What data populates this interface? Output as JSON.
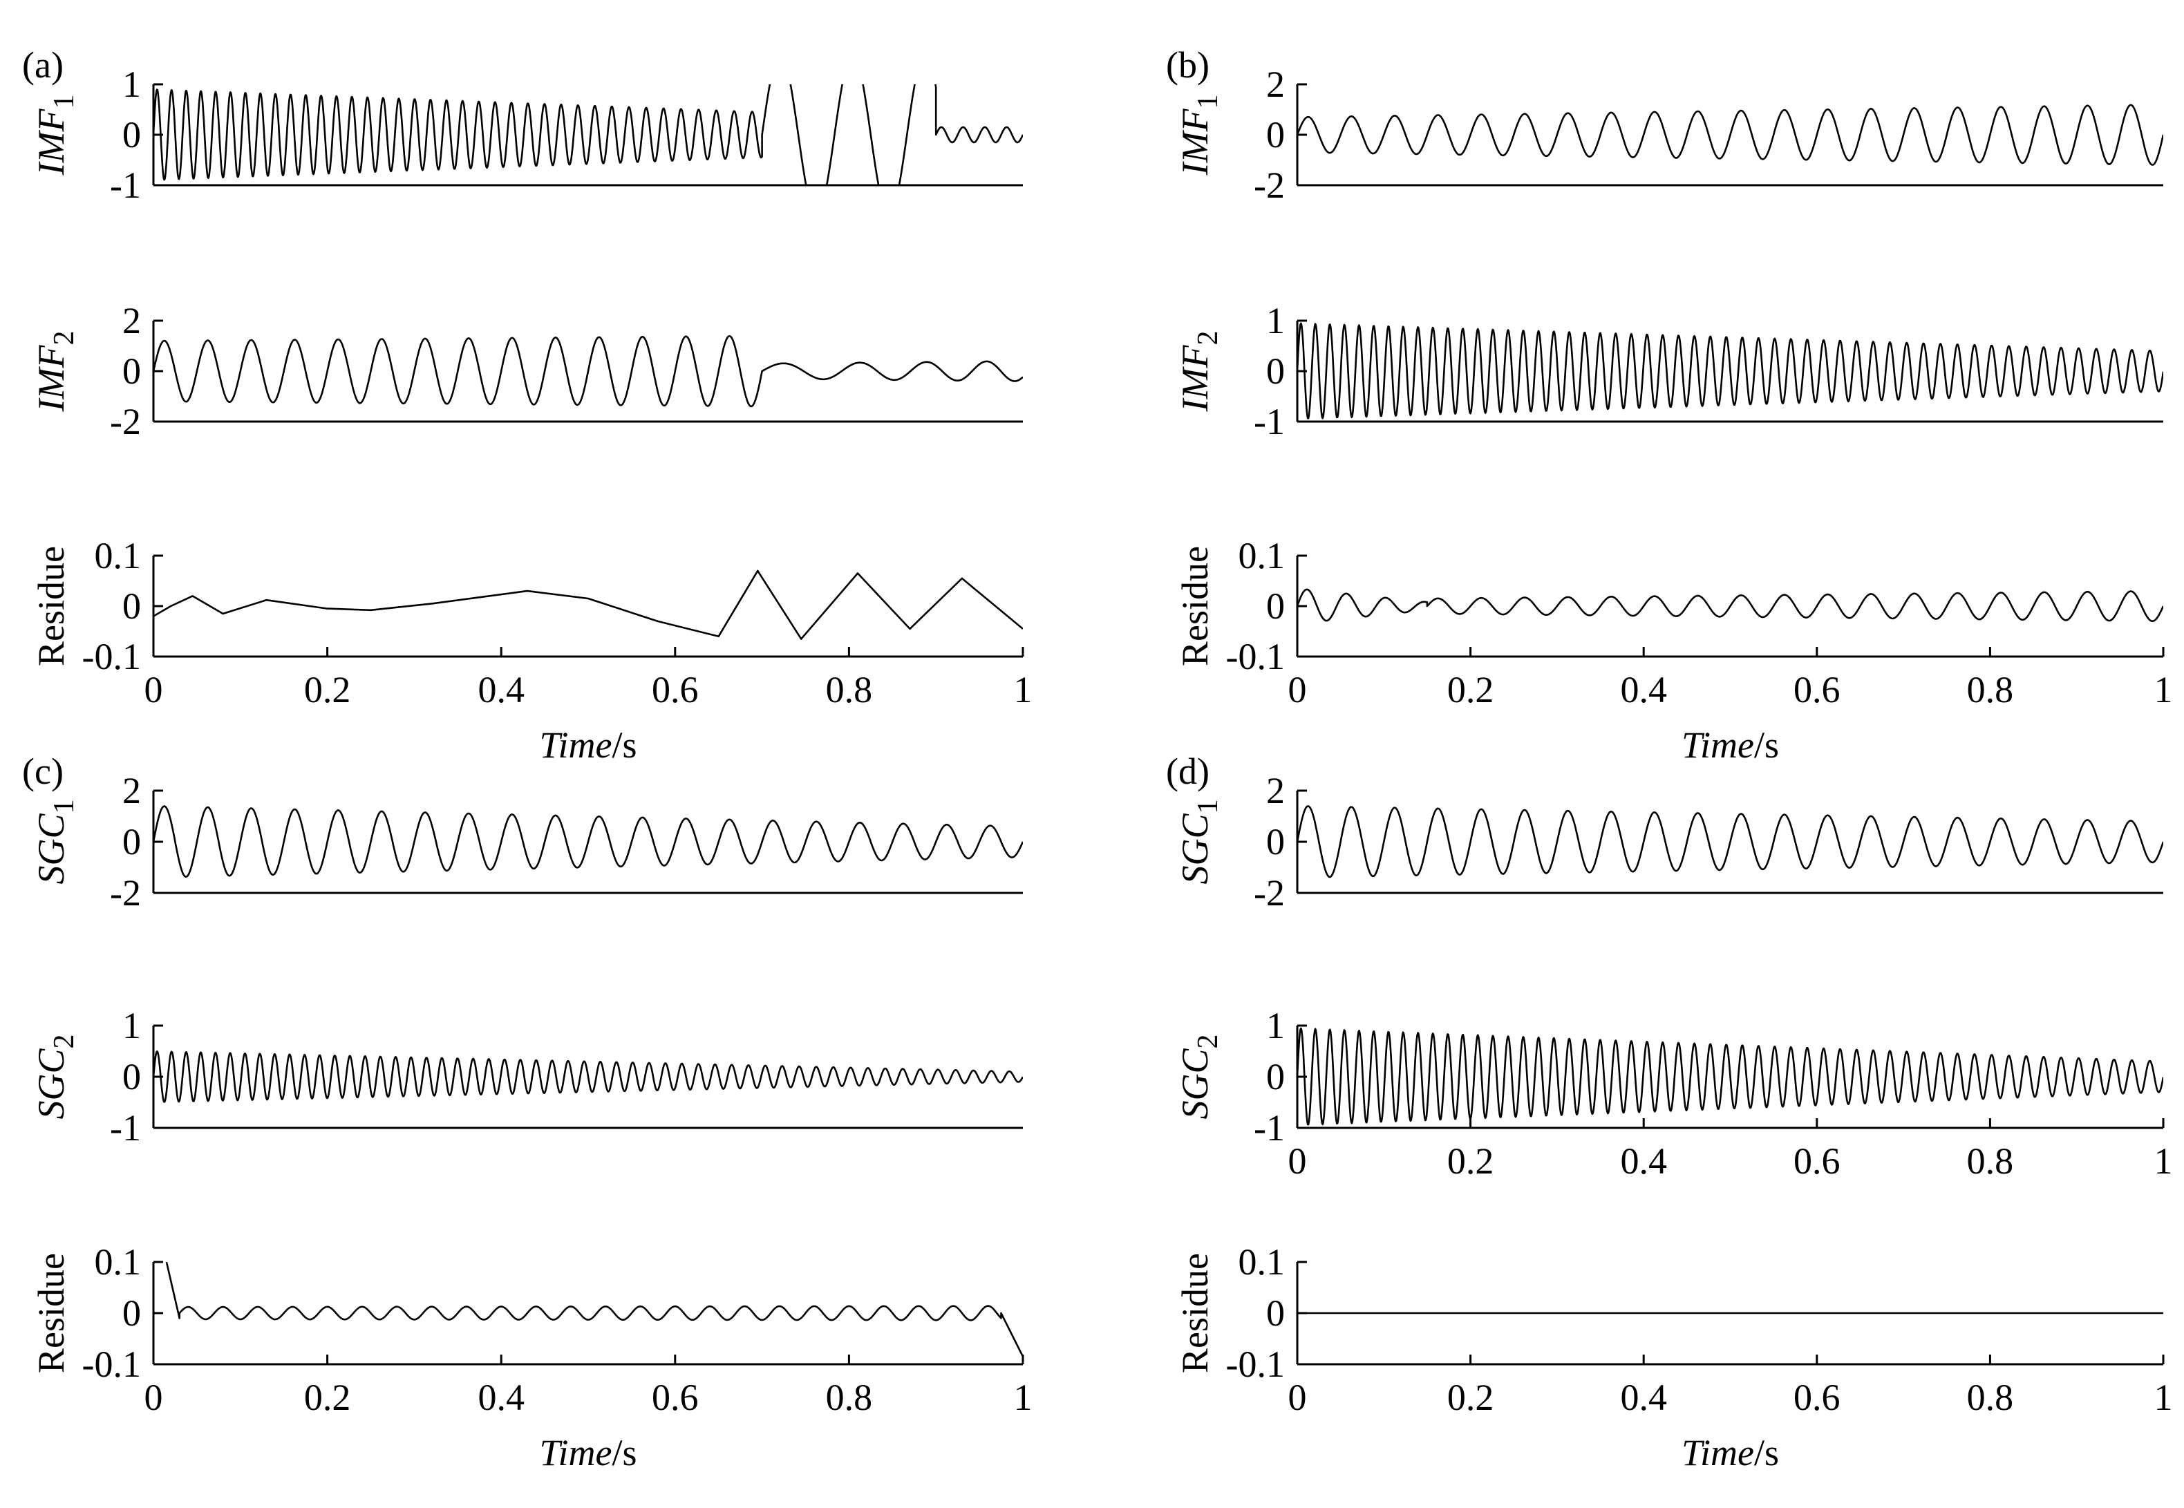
{
  "figure_title": "",
  "chart_data": [
    {
      "type": "line",
      "panel": "a",
      "panel_label": "(a)",
      "ylabel_main": "IMF",
      "ylabel_sub": "1",
      "ylabel_italic": true,
      "ylim": [
        -1,
        1
      ],
      "yticks": [
        "1",
        "0",
        "-1"
      ],
      "ytick_values": [
        1,
        0,
        -1
      ],
      "xlim": [
        0,
        1
      ],
      "x_axis_shown": false,
      "signal": {
        "model": "chirp_plus_burst",
        "description": "oscillation ~0.9 amplitude decaying to ~0.5, clipped burst 0.72-0.87, small ripple after 0.9"
      },
      "series": [
        {
          "name": "IMF1",
          "segments": [
            {
              "x0": 0.0,
              "x1": 0.7,
              "f0": 60,
              "f1": 48,
              "a0": 0.9,
              "a1": 0.45
            },
            {
              "x0": 0.7,
              "x1": 0.9,
              "f0": 12,
              "f1": 12,
              "a0": 1.6,
              "a1": 1.6
            },
            {
              "x0": 0.9,
              "x1": 1.0,
              "f0": 40,
              "f1": 40,
              "a0": 0.15,
              "a1": 0.15
            }
          ]
        }
      ]
    },
    {
      "type": "line",
      "panel": "a",
      "ylabel_main": "IMF",
      "ylabel_sub": "2",
      "ylabel_italic": true,
      "ylim": [
        -2,
        2
      ],
      "yticks": [
        "2",
        "0",
        "-2"
      ],
      "ytick_values": [
        2,
        0,
        -2
      ],
      "xlim": [
        0,
        1
      ],
      "x_axis_shown": false,
      "series": [
        {
          "name": "IMF2",
          "segments": [
            {
              "x0": 0.0,
              "x1": 0.7,
              "f0": 20,
              "f1": 20,
              "a0": 1.2,
              "a1": 1.4
            },
            {
              "x0": 0.7,
              "x1": 1.0,
              "f0": 10,
              "f1": 16,
              "a0": 0.3,
              "a1": 0.4
            }
          ]
        }
      ]
    },
    {
      "type": "line",
      "panel": "a",
      "ylabel_main": "Residue",
      "ylabel_sub": "",
      "ylabel_italic": false,
      "ylim": [
        -0.1,
        0.1
      ],
      "yticks": [
        "0.1",
        "0",
        "-0.1"
      ],
      "ytick_values": [
        0.1,
        0,
        -0.1
      ],
      "xlim": [
        0,
        1
      ],
      "x_axis_shown": true,
      "xticks": [
        "0",
        "0.2",
        "0.4",
        "0.6",
        "0.8",
        "1"
      ],
      "xtick_values": [
        0,
        0.2,
        0.4,
        0.6,
        0.8,
        1
      ],
      "xlabel_italic": "Time",
      "xlabel_unit": "/s",
      "series": [
        {
          "name": "Residue",
          "points": [
            [
              0,
              -0.02
            ],
            [
              0.02,
              0.0
            ],
            [
              0.045,
              0.02
            ],
            [
              0.08,
              -0.015
            ],
            [
              0.13,
              0.012
            ],
            [
              0.2,
              -0.005
            ],
            [
              0.25,
              -0.008
            ],
            [
              0.32,
              0.005
            ],
            [
              0.43,
              0.03
            ],
            [
              0.5,
              0.015
            ],
            [
              0.58,
              -0.03
            ],
            [
              0.65,
              -0.06
            ],
            [
              0.695,
              0.07
            ],
            [
              0.745,
              -0.065
            ],
            [
              0.81,
              0.065
            ],
            [
              0.87,
              -0.045
            ],
            [
              0.93,
              0.055
            ],
            [
              1.0,
              -0.045
            ]
          ]
        }
      ]
    },
    {
      "type": "line",
      "panel": "b",
      "panel_label": "(b)",
      "ylabel_main": "IMF",
      "ylabel_sub": "1",
      "ylabel_italic": true,
      "ylim": [
        -2,
        2
      ],
      "yticks": [
        "2",
        "0",
        "-2"
      ],
      "ytick_values": [
        2,
        0,
        -2
      ],
      "xlim": [
        0,
        1
      ],
      "x_axis_shown": false,
      "series": [
        {
          "name": "IMF1",
          "segments": [
            {
              "x0": 0.0,
              "x1": 1.0,
              "f0": 20,
              "f1": 20,
              "a0": 0.7,
              "a1": 1.2
            }
          ]
        }
      ]
    },
    {
      "type": "line",
      "panel": "b",
      "ylabel_main": "IMF",
      "ylabel_sub": "2",
      "ylabel_italic": true,
      "ylim": [
        -1,
        1
      ],
      "yticks": [
        "1",
        "0",
        "-1"
      ],
      "ytick_values": [
        1,
        0,
        -1
      ],
      "xlim": [
        0,
        1
      ],
      "x_axis_shown": false,
      "series": [
        {
          "name": "IMF2",
          "segments": [
            {
              "x0": 0.0,
              "x1": 1.0,
              "f0": 60,
              "f1": 48,
              "a0": 0.95,
              "a1": 0.4
            }
          ]
        }
      ]
    },
    {
      "type": "line",
      "panel": "b",
      "ylabel_main": "Residue",
      "ylabel_sub": "",
      "ylabel_italic": false,
      "ylim": [
        -0.1,
        0.1
      ],
      "yticks": [
        "0.1",
        "0",
        "-0.1"
      ],
      "ytick_values": [
        0.1,
        0,
        -0.1
      ],
      "xlim": [
        0,
        1
      ],
      "x_axis_shown": true,
      "xticks": [
        "0",
        "0.2",
        "0.4",
        "0.6",
        "0.8",
        "1"
      ],
      "xtick_values": [
        0,
        0.2,
        0.4,
        0.6,
        0.8,
        1
      ],
      "xlabel_italic": "Time",
      "xlabel_unit": "/s",
      "series": [
        {
          "name": "Residue",
          "segments": [
            {
              "x0": 0.0,
              "x1": 0.15,
              "f0": 22,
              "f1": 22,
              "a0": 0.035,
              "a1": 0.008
            },
            {
              "x0": 0.15,
              "x1": 1.0,
              "f0": 20,
              "f1": 20,
              "a0": 0.015,
              "a1": 0.03
            }
          ]
        }
      ]
    },
    {
      "type": "line",
      "panel": "c",
      "panel_label": "(c)",
      "ylabel_main": "SGC",
      "ylabel_sub": "1",
      "ylabel_italic": true,
      "ylim": [
        -2,
        2
      ],
      "yticks": [
        "2",
        "0",
        "-2"
      ],
      "ytick_values": [
        2,
        0,
        -2
      ],
      "xlim": [
        0,
        1
      ],
      "x_axis_shown": false,
      "series": [
        {
          "name": "SGC1",
          "segments": [
            {
              "x0": 0.0,
              "x1": 1.0,
              "f0": 20,
              "f1": 20,
              "a0": 1.4,
              "a1": 0.6
            }
          ]
        }
      ]
    },
    {
      "type": "line",
      "panel": "c",
      "ylabel_main": "SGC",
      "ylabel_sub": "2",
      "ylabel_italic": true,
      "ylim": [
        -1,
        1
      ],
      "yticks": [
        "1",
        "0",
        "-1"
      ],
      "ytick_values": [
        1,
        0,
        -1
      ],
      "xlim": [
        0,
        1
      ],
      "x_axis_shown": false,
      "series": [
        {
          "name": "SGC2",
          "segments": [
            {
              "x0": 0.0,
              "x1": 1.0,
              "f0": 60,
              "f1": 48,
              "a0": 0.5,
              "a1": 0.1
            }
          ]
        }
      ]
    },
    {
      "type": "line",
      "panel": "c",
      "ylabel_main": "Residue",
      "ylabel_sub": "",
      "ylabel_italic": false,
      "ylim": [
        -0.1,
        0.1
      ],
      "yticks": [
        "0.1",
        "0",
        "-0.1"
      ],
      "ytick_values": [
        0.1,
        0,
        -0.1
      ],
      "xlim": [
        0,
        1
      ],
      "x_axis_shown": true,
      "xticks": [
        "0",
        "0.2",
        "0.4",
        "0.6",
        "0.8",
        "1"
      ],
      "xtick_values": [
        0,
        0.2,
        0.4,
        0.6,
        0.8,
        1
      ],
      "xlabel_italic": "Time",
      "xlabel_unit": "/s",
      "series": [
        {
          "name": "Residue",
          "start_spike": [
            [
              0.015,
              0.1
            ],
            [
              0.03,
              -0.01
            ]
          ],
          "end_drop": [
            [
              0.975,
              0.0
            ],
            [
              1.0,
              -0.085
            ]
          ],
          "segments": [
            {
              "x0": 0.03,
              "x1": 0.975,
              "f0": 25,
              "f1": 25,
              "a0": 0.012,
              "a1": 0.014
            }
          ]
        }
      ]
    },
    {
      "type": "line",
      "panel": "d",
      "panel_label": "(d)",
      "ylabel_main": "SGC",
      "ylabel_sub": "1",
      "ylabel_italic": true,
      "ylim": [
        -2,
        2
      ],
      "yticks": [
        "2",
        "0",
        "-2"
      ],
      "ytick_values": [
        2,
        0,
        -2
      ],
      "xlim": [
        0,
        1
      ],
      "x_axis_shown": false,
      "series": [
        {
          "name": "SGC1",
          "segments": [
            {
              "x0": 0.0,
              "x1": 1.0,
              "f0": 20,
              "f1": 20,
              "a0": 1.4,
              "a1": 0.8
            }
          ]
        }
      ]
    },
    {
      "type": "line",
      "panel": "d",
      "ylabel_main": "SGC",
      "ylabel_sub": "2",
      "ylabel_italic": true,
      "ylim": [
        -1,
        1
      ],
      "yticks": [
        "1",
        "0",
        "-1"
      ],
      "ytick_values": [
        1,
        0,
        -1
      ],
      "xlim": [
        0,
        1
      ],
      "x_axis_shown": true,
      "xticks": [
        "0",
        "0.2",
        "0.4",
        "0.6",
        "0.8",
        "1"
      ],
      "xtick_values": [
        0,
        0.2,
        0.4,
        0.6,
        0.8,
        1
      ],
      "xlabel_italic": "",
      "xlabel_unit": "",
      "series": [
        {
          "name": "SGC2",
          "segments": [
            {
              "x0": 0.0,
              "x1": 1.0,
              "f0": 60,
              "f1": 48,
              "a0": 0.95,
              "a1": 0.3
            }
          ]
        }
      ]
    },
    {
      "type": "line",
      "panel": "d",
      "ylabel_main": "Residue",
      "ylabel_sub": "",
      "ylabel_italic": false,
      "ylim": [
        -0.1,
        0.1
      ],
      "yticks": [
        "0.1",
        "0",
        "-0.1"
      ],
      "ytick_values": [
        0.1,
        0,
        -0.1
      ],
      "xlim": [
        0,
        1
      ],
      "x_axis_shown": true,
      "xticks": [
        "0",
        "0.2",
        "0.4",
        "0.6",
        "0.8",
        "1"
      ],
      "xtick_values": [
        0,
        0.2,
        0.4,
        0.6,
        0.8,
        1
      ],
      "xlabel_italic": "Time",
      "xlabel_unit": "/s",
      "series": [
        {
          "name": "Residue",
          "points": [
            [
              0,
              0
            ],
            [
              1,
              0
            ]
          ]
        }
      ]
    }
  ]
}
